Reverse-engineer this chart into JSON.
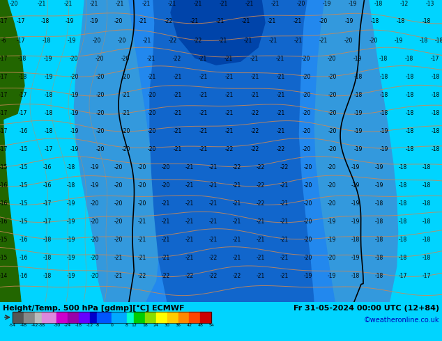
{
  "title_left": "Height/Temp. 500 hPa [gdmp][°C] ECMWF",
  "title_right": "Fr 31-05-2024 00:00 UTC (12+84)",
  "credit": "©weatheronline.co.uk",
  "colorbar_values": [
    -54,
    -48,
    -42,
    -38,
    -30,
    -24,
    -18,
    -12,
    -8,
    0,
    8,
    12,
    18,
    24,
    30,
    36,
    42,
    48,
    54
  ],
  "cbar_colors": [
    "#555555",
    "#888888",
    "#bbbbbb",
    "#dd88dd",
    "#cc00cc",
    "#9900aa",
    "#6600ff",
    "#0000cc",
    "#0055ff",
    "#00aaff",
    "#00ffcc",
    "#00cc00",
    "#88dd00",
    "#ffff00",
    "#ffcc00",
    "#ff8800",
    "#ff4400",
    "#cc0000",
    "#880000"
  ],
  "bg_cyan": "#00d4ff",
  "bg_light_cyan": "#44ddff",
  "bg_blue": "#3399dd",
  "bg_dark_blue": "#1166cc",
  "bg_med_blue": "#2288ee",
  "bg_green": "#226600",
  "bg_light_green": "#44aa00",
  "text_color": "#000000",
  "contour_black": "#000000",
  "contour_salmon": "#cc8855",
  "bottom_bg": "#c0c0c0",
  "credit_color": "#0000bb",
  "title_fontsize": 8,
  "credit_fontsize": 7,
  "label_fontsize": 6,
  "temp_labels": [
    [
      20,
      5,
      "-20"
    ],
    [
      60,
      5,
      "-21"
    ],
    [
      98,
      5,
      "-21"
    ],
    [
      135,
      5,
      "-21"
    ],
    [
      172,
      5,
      "-21"
    ],
    [
      210,
      5,
      "-21"
    ],
    [
      247,
      5,
      "-21"
    ],
    [
      284,
      5,
      "-21"
    ],
    [
      321,
      5,
      "-21"
    ],
    [
      358,
      5,
      "-21"
    ],
    [
      395,
      5,
      "-21"
    ],
    [
      432,
      5,
      "-20"
    ],
    [
      469,
      5,
      "-19"
    ],
    [
      506,
      5,
      "-19"
    ],
    [
      543,
      5,
      "-18"
    ],
    [
      580,
      5,
      "-12"
    ],
    [
      617,
      5,
      "-13"
    ],
    [
      5,
      30,
      "-17"
    ],
    [
      30,
      30,
      "-17"
    ],
    [
      65,
      30,
      "-18"
    ],
    [
      100,
      30,
      "-19"
    ],
    [
      135,
      30,
      "-19"
    ],
    [
      170,
      30,
      "-20"
    ],
    [
      205,
      30,
      "-21"
    ],
    [
      242,
      30,
      "-22"
    ],
    [
      279,
      30,
      "-21"
    ],
    [
      316,
      30,
      "-21"
    ],
    [
      353,
      30,
      "-21"
    ],
    [
      390,
      30,
      "-21"
    ],
    [
      427,
      30,
      "-21"
    ],
    [
      464,
      30,
      "-20"
    ],
    [
      501,
      30,
      "-19"
    ],
    [
      538,
      30,
      "-18"
    ],
    [
      575,
      30,
      "-18"
    ],
    [
      612,
      30,
      "-18"
    ],
    [
      5,
      58,
      "-6"
    ],
    [
      30,
      58,
      "-17"
    ],
    [
      67,
      58,
      "-18"
    ],
    [
      103,
      58,
      "-19"
    ],
    [
      139,
      58,
      "-20"
    ],
    [
      175,
      58,
      "-20"
    ],
    [
      211,
      58,
      "-21"
    ],
    [
      248,
      58,
      "-22"
    ],
    [
      284,
      58,
      "-22"
    ],
    [
      320,
      58,
      "-21"
    ],
    [
      356,
      58,
      "-21"
    ],
    [
      392,
      58,
      "-21"
    ],
    [
      428,
      58,
      "-21"
    ],
    [
      464,
      58,
      "-21"
    ],
    [
      500,
      58,
      "-20"
    ],
    [
      536,
      58,
      "-20"
    ],
    [
      572,
      58,
      "-19"
    ],
    [
      608,
      58,
      "-18"
    ],
    [
      630,
      58,
      "-18"
    ],
    [
      5,
      84,
      "-17"
    ],
    [
      32,
      84,
      "-18"
    ],
    [
      69,
      84,
      "-19"
    ],
    [
      106,
      84,
      "-20"
    ],
    [
      143,
      84,
      "-20"
    ],
    [
      180,
      84,
      "-20"
    ],
    [
      217,
      84,
      "-21"
    ],
    [
      254,
      84,
      "-22"
    ],
    [
      291,
      84,
      "-21"
    ],
    [
      328,
      84,
      "-21"
    ],
    [
      365,
      84,
      "-21"
    ],
    [
      402,
      84,
      "-21"
    ],
    [
      439,
      84,
      "-20"
    ],
    [
      476,
      84,
      "-20"
    ],
    [
      513,
      84,
      "-19"
    ],
    [
      550,
      84,
      "-18"
    ],
    [
      587,
      84,
      "-18"
    ],
    [
      624,
      84,
      "-17"
    ],
    [
      5,
      110,
      "-17"
    ],
    [
      33,
      110,
      "-18"
    ],
    [
      70,
      110,
      "-19"
    ],
    [
      107,
      110,
      "-20"
    ],
    [
      144,
      110,
      "-20"
    ],
    [
      181,
      110,
      "-20"
    ],
    [
      218,
      110,
      "-21"
    ],
    [
      255,
      110,
      "-21"
    ],
    [
      292,
      110,
      "-21"
    ],
    [
      329,
      110,
      "-21"
    ],
    [
      366,
      110,
      "-21"
    ],
    [
      403,
      110,
      "-21"
    ],
    [
      440,
      110,
      "-20"
    ],
    [
      477,
      110,
      "-20"
    ],
    [
      514,
      110,
      "-18"
    ],
    [
      551,
      110,
      "-18"
    ],
    [
      588,
      110,
      "-18"
    ],
    [
      625,
      110,
      "-18"
    ],
    [
      5,
      136,
      "-17"
    ],
    [
      33,
      136,
      "-17"
    ],
    [
      70,
      136,
      "-18"
    ],
    [
      107,
      136,
      "-19"
    ],
    [
      144,
      136,
      "-20"
    ],
    [
      181,
      136,
      "-21"
    ],
    [
      218,
      136,
      "-20"
    ],
    [
      255,
      136,
      "-21"
    ],
    [
      292,
      136,
      "-21"
    ],
    [
      329,
      136,
      "-21"
    ],
    [
      366,
      136,
      "-21"
    ],
    [
      403,
      136,
      "-21"
    ],
    [
      440,
      136,
      "-20"
    ],
    [
      477,
      136,
      "-20"
    ],
    [
      514,
      136,
      "-18"
    ],
    [
      551,
      136,
      "-18"
    ],
    [
      588,
      136,
      "-18"
    ],
    [
      625,
      136,
      "-18"
    ],
    [
      5,
      162,
      "-17"
    ],
    [
      33,
      162,
      "-17"
    ],
    [
      70,
      162,
      "-18"
    ],
    [
      107,
      162,
      "-19"
    ],
    [
      144,
      162,
      "-20"
    ],
    [
      181,
      162,
      "-21"
    ],
    [
      218,
      162,
      "-20"
    ],
    [
      255,
      162,
      "-21"
    ],
    [
      292,
      162,
      "-21"
    ],
    [
      329,
      162,
      "-21"
    ],
    [
      366,
      162,
      "-22"
    ],
    [
      403,
      162,
      "-21"
    ],
    [
      440,
      162,
      "-20"
    ],
    [
      477,
      162,
      "-20"
    ],
    [
      514,
      162,
      "-19"
    ],
    [
      551,
      162,
      "-18"
    ],
    [
      588,
      162,
      "-18"
    ],
    [
      625,
      162,
      "-18"
    ],
    [
      5,
      188,
      "-17"
    ],
    [
      34,
      188,
      "-16"
    ],
    [
      70,
      188,
      "-18"
    ],
    [
      107,
      188,
      "-19"
    ],
    [
      144,
      188,
      "-20"
    ],
    [
      181,
      188,
      "-20"
    ],
    [
      218,
      188,
      "-20"
    ],
    [
      255,
      188,
      "-21"
    ],
    [
      292,
      188,
      "-21"
    ],
    [
      329,
      188,
      "-21"
    ],
    [
      366,
      188,
      "-22"
    ],
    [
      403,
      188,
      "-21"
    ],
    [
      440,
      188,
      "-20"
    ],
    [
      477,
      188,
      "-20"
    ],
    [
      514,
      188,
      "-19"
    ],
    [
      551,
      188,
      "-19"
    ],
    [
      588,
      188,
      "-18"
    ],
    [
      625,
      188,
      "-18"
    ],
    [
      5,
      214,
      "-17"
    ],
    [
      34,
      214,
      "-15"
    ],
    [
      70,
      214,
      "-17"
    ],
    [
      107,
      214,
      "-19"
    ],
    [
      144,
      214,
      "-20"
    ],
    [
      181,
      214,
      "-20"
    ],
    [
      218,
      214,
      "-20"
    ],
    [
      255,
      214,
      "-21"
    ],
    [
      292,
      214,
      "-21"
    ],
    [
      329,
      214,
      "-22"
    ],
    [
      366,
      214,
      "-22"
    ],
    [
      403,
      214,
      "-22"
    ],
    [
      440,
      214,
      "-20"
    ],
    [
      477,
      214,
      "-20"
    ],
    [
      514,
      214,
      "-19"
    ],
    [
      551,
      214,
      "-19"
    ],
    [
      588,
      214,
      "-18"
    ],
    [
      625,
      214,
      "-18"
    ],
    [
      5,
      240,
      "-15"
    ],
    [
      34,
      240,
      "-15"
    ],
    [
      68,
      240,
      "-16"
    ],
    [
      102,
      240,
      "-18"
    ],
    [
      136,
      240,
      "-19"
    ],
    [
      170,
      240,
      "-20"
    ],
    [
      204,
      240,
      "-20"
    ],
    [
      238,
      240,
      "-20"
    ],
    [
      272,
      240,
      "-21"
    ],
    [
      306,
      240,
      "-21"
    ],
    [
      340,
      240,
      "-22"
    ],
    [
      374,
      240,
      "-22"
    ],
    [
      408,
      240,
      "-22"
    ],
    [
      442,
      240,
      "-20"
    ],
    [
      476,
      240,
      "-20"
    ],
    [
      510,
      240,
      "-19"
    ],
    [
      544,
      240,
      "-19"
    ],
    [
      578,
      240,
      "-18"
    ],
    [
      612,
      240,
      "-18"
    ],
    [
      5,
      266,
      "-16"
    ],
    [
      34,
      266,
      "-15"
    ],
    [
      68,
      266,
      "-16"
    ],
    [
      102,
      266,
      "-18"
    ],
    [
      136,
      266,
      "-19"
    ],
    [
      170,
      266,
      "-20"
    ],
    [
      204,
      266,
      "-20"
    ],
    [
      238,
      266,
      "-20"
    ],
    [
      272,
      266,
      "-21"
    ],
    [
      306,
      266,
      "-21"
    ],
    [
      340,
      266,
      "-21"
    ],
    [
      374,
      266,
      "-22"
    ],
    [
      408,
      266,
      "-21"
    ],
    [
      442,
      266,
      "-20"
    ],
    [
      476,
      266,
      "-20"
    ],
    [
      510,
      266,
      "-19"
    ],
    [
      544,
      266,
      "-19"
    ],
    [
      578,
      266,
      "-18"
    ],
    [
      612,
      266,
      "-18"
    ],
    [
      5,
      292,
      "-16"
    ],
    [
      34,
      292,
      "-15"
    ],
    [
      68,
      292,
      "-17"
    ],
    [
      102,
      292,
      "-19"
    ],
    [
      136,
      292,
      "-20"
    ],
    [
      170,
      292,
      "-20"
    ],
    [
      204,
      292,
      "-20"
    ],
    [
      238,
      292,
      "-21"
    ],
    [
      272,
      292,
      "-21"
    ],
    [
      306,
      292,
      "-21"
    ],
    [
      340,
      292,
      "-21"
    ],
    [
      374,
      292,
      "-22"
    ],
    [
      408,
      292,
      "-21"
    ],
    [
      442,
      292,
      "-20"
    ],
    [
      476,
      292,
      "-20"
    ],
    [
      510,
      292,
      "-19"
    ],
    [
      544,
      292,
      "-18"
    ],
    [
      578,
      292,
      "-18"
    ],
    [
      612,
      292,
      "-18"
    ],
    [
      5,
      318,
      "-16"
    ],
    [
      34,
      318,
      "-15"
    ],
    [
      68,
      318,
      "-17"
    ],
    [
      102,
      318,
      "-19"
    ],
    [
      136,
      318,
      "-20"
    ],
    [
      170,
      318,
      "-20"
    ],
    [
      204,
      318,
      "-21"
    ],
    [
      238,
      318,
      "-21"
    ],
    [
      272,
      318,
      "-21"
    ],
    [
      306,
      318,
      "-21"
    ],
    [
      340,
      318,
      "-21"
    ],
    [
      374,
      318,
      "-21"
    ],
    [
      408,
      318,
      "-21"
    ],
    [
      442,
      318,
      "-20"
    ],
    [
      476,
      318,
      "-19"
    ],
    [
      510,
      318,
      "-19"
    ],
    [
      544,
      318,
      "-18"
    ],
    [
      578,
      318,
      "-18"
    ],
    [
      612,
      318,
      "-18"
    ],
    [
      5,
      344,
      "-15"
    ],
    [
      34,
      344,
      "-16"
    ],
    [
      68,
      344,
      "-18"
    ],
    [
      102,
      344,
      "-19"
    ],
    [
      136,
      344,
      "-20"
    ],
    [
      170,
      344,
      "-20"
    ],
    [
      204,
      344,
      "-21"
    ],
    [
      238,
      344,
      "-21"
    ],
    [
      272,
      344,
      "-21"
    ],
    [
      306,
      344,
      "-21"
    ],
    [
      340,
      344,
      "-21"
    ],
    [
      374,
      344,
      "-21"
    ],
    [
      408,
      344,
      "-21"
    ],
    [
      442,
      344,
      "-20"
    ],
    [
      476,
      344,
      "-19"
    ],
    [
      510,
      344,
      "-18"
    ],
    [
      544,
      344,
      "-18"
    ],
    [
      578,
      344,
      "-18"
    ],
    [
      612,
      344,
      "-18"
    ],
    [
      5,
      370,
      "-15"
    ],
    [
      34,
      370,
      "-16"
    ],
    [
      68,
      370,
      "-18"
    ],
    [
      102,
      370,
      "-19"
    ],
    [
      136,
      370,
      "-20"
    ],
    [
      170,
      370,
      "-21"
    ],
    [
      204,
      370,
      "-21"
    ],
    [
      238,
      370,
      "-21"
    ],
    [
      272,
      370,
      "-21"
    ],
    [
      306,
      370,
      "-22"
    ],
    [
      340,
      370,
      "-21"
    ],
    [
      374,
      370,
      "-21"
    ],
    [
      408,
      370,
      "-21"
    ],
    [
      442,
      370,
      "-20"
    ],
    [
      476,
      370,
      "-20"
    ],
    [
      510,
      370,
      "-19"
    ],
    [
      544,
      370,
      "-18"
    ],
    [
      578,
      370,
      "-18"
    ],
    [
      612,
      370,
      "-18"
    ],
    [
      5,
      396,
      "-14"
    ],
    [
      34,
      396,
      "-16"
    ],
    [
      68,
      396,
      "-18"
    ],
    [
      102,
      396,
      "-19"
    ],
    [
      136,
      396,
      "-20"
    ],
    [
      170,
      396,
      "-21"
    ],
    [
      204,
      396,
      "-22"
    ],
    [
      238,
      396,
      "-22"
    ],
    [
      272,
      396,
      "-22"
    ],
    [
      306,
      396,
      "-22"
    ],
    [
      340,
      396,
      "-22"
    ],
    [
      374,
      396,
      "-21"
    ],
    [
      408,
      396,
      "-21"
    ],
    [
      442,
      396,
      "-19"
    ],
    [
      476,
      396,
      "-19"
    ],
    [
      510,
      396,
      "-18"
    ],
    [
      544,
      396,
      "-18"
    ],
    [
      578,
      396,
      "-17"
    ],
    [
      612,
      396,
      "-17"
    ]
  ]
}
